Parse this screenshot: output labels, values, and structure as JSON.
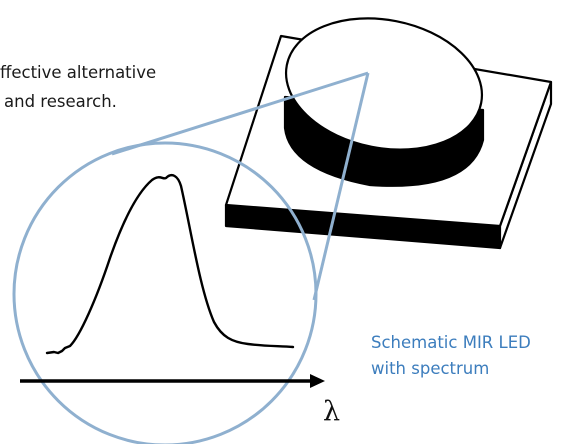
{
  "text": {
    "line1": "ffective alternative",
    "line2": "and research."
  },
  "caption": {
    "line1": "Schematic MIR LED",
    "line2": "with spectrum"
  },
  "axis_symbol": "λ",
  "colors": {
    "text": "#1a1a1a",
    "caption": "#3c7dbd",
    "magnifier_outline": "#8fb0cf",
    "outline": "#000000",
    "fill": "#ffffff"
  },
  "icons": {
    "led": "led-chip-schematic",
    "spectrum": "emission-spectrum-curve",
    "axis": "wavelength-axis-arrow"
  }
}
